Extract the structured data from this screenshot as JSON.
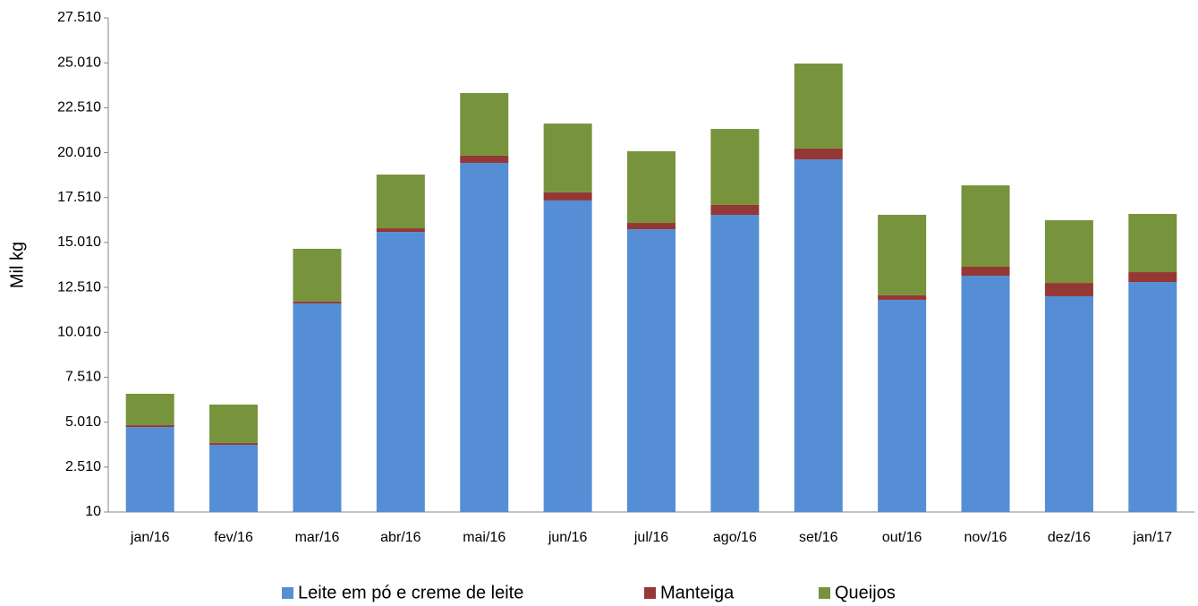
{
  "chart_data": {
    "type": "stacked_bar",
    "y_label": "Mil kg",
    "categories": [
      "jan/16",
      "fev/16",
      "mar/16",
      "abr/16",
      "mai/16",
      "jun/16",
      "jul/16",
      "ago/16",
      "set/16",
      "out/16",
      "nov/16",
      "dez/16",
      "jan/17"
    ],
    "series": [
      {
        "name": "Leite em pó e creme de leite",
        "color": "#558ed5",
        "values": [
          4740,
          3750,
          11620,
          15600,
          19440,
          17350,
          15750,
          16550,
          19640,
          11820,
          13160,
          12020,
          12810
        ]
      },
      {
        "name": "Manteiga",
        "color": "#953735",
        "values": [
          100,
          100,
          100,
          200,
          400,
          450,
          350,
          550,
          600,
          250,
          500,
          740,
          550
        ]
      },
      {
        "name": "Queijos",
        "color": "#77933c",
        "values": [
          1750,
          2140,
          2940,
          2990,
          3490,
          3830,
          3990,
          4230,
          4730,
          4480,
          4530,
          3490,
          3240
        ]
      }
    ],
    "ylim": [
      10,
      27510
    ],
    "yticks": [
      10,
      {
        "value": 2510,
        "label": "2.510"
      },
      {
        "value": 5010,
        "label": "5.010"
      },
      {
        "value": 7510,
        "label": "7.510"
      },
      {
        "value": 10010,
        "label": "10.010"
      },
      {
        "value": 12510,
        "label": "12.510"
      },
      {
        "value": 15010,
        "label": "15.010"
      },
      {
        "value": 17510,
        "label": "17.510"
      },
      {
        "value": 20010,
        "label": "20.010"
      },
      {
        "value": 22510,
        "label": "22.510"
      },
      {
        "value": 25010,
        "label": "25.010"
      },
      {
        "value": 27510,
        "label": "27.510"
      }
    ],
    "grid": false,
    "legend": "bottom"
  }
}
